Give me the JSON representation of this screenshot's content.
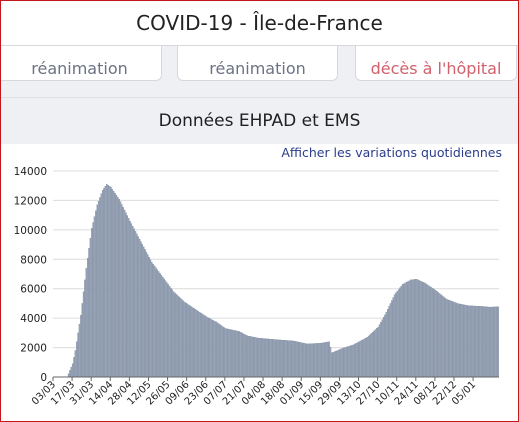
{
  "header": {
    "title": "COVID-19 - Île-de-France"
  },
  "cards": [
    {
      "label": "réanimation"
    },
    {
      "label": "réanimation"
    },
    {
      "label": "décès à l'hôpital"
    }
  ],
  "section": {
    "title": "Données EHPAD et EMS",
    "toggle_label": "Afficher les variations quotidiennes"
  },
  "colors": {
    "bar": "#9aa6b8",
    "bar_stroke": "#6f7d93",
    "frame": "#c4161c"
  },
  "chart_data": {
    "type": "bar",
    "ylim": [
      0,
      14000
    ],
    "yticks": [
      0,
      2000,
      4000,
      6000,
      8000,
      10000,
      12000,
      14000
    ],
    "grid": true,
    "x_tick_labels": [
      "03/03",
      "17/03",
      "31/03",
      "14/04",
      "28/04",
      "12/05",
      "26/05",
      "09/06",
      "23/06",
      "07/07",
      "21/07",
      "04/08",
      "18/08",
      "01/09",
      "15/09",
      "29/09",
      "13/10",
      "27/10",
      "10/11",
      "24/11",
      "08/12",
      "22/12",
      "05/01"
    ],
    "x_tick_interval_days": 14,
    "days_shown": 327,
    "anchors": [
      [
        0,
        0
      ],
      [
        10,
        0
      ],
      [
        14,
        900
      ],
      [
        16,
        1800
      ],
      [
        20,
        4200
      ],
      [
        24,
        7400
      ],
      [
        28,
        10100
      ],
      [
        32,
        11700
      ],
      [
        36,
        12700
      ],
      [
        39,
        13100
      ],
      [
        42,
        12900
      ],
      [
        48,
        12100
      ],
      [
        56,
        10600
      ],
      [
        64,
        9200
      ],
      [
        72,
        7800
      ],
      [
        80,
        6800
      ],
      [
        88,
        5800
      ],
      [
        96,
        5100
      ],
      [
        104,
        4600
      ],
      [
        112,
        4100
      ],
      [
        120,
        3700
      ],
      [
        126,
        3300
      ],
      [
        136,
        3100
      ],
      [
        142,
        2800
      ],
      [
        150,
        2650
      ],
      [
        162,
        2550
      ],
      [
        176,
        2450
      ],
      [
        186,
        2250
      ],
      [
        196,
        2300
      ],
      [
        202,
        2400
      ],
      [
        204,
        1650
      ],
      [
        212,
        1950
      ],
      [
        220,
        2200
      ],
      [
        230,
        2700
      ],
      [
        238,
        3400
      ],
      [
        244,
        4400
      ],
      [
        250,
        5600
      ],
      [
        256,
        6300
      ],
      [
        262,
        6600
      ],
      [
        266,
        6650
      ],
      [
        272,
        6400
      ],
      [
        280,
        5900
      ],
      [
        288,
        5300
      ],
      [
        296,
        5000
      ],
      [
        304,
        4850
      ],
      [
        314,
        4800
      ],
      [
        320,
        4750
      ],
      [
        326,
        4780
      ]
    ]
  }
}
